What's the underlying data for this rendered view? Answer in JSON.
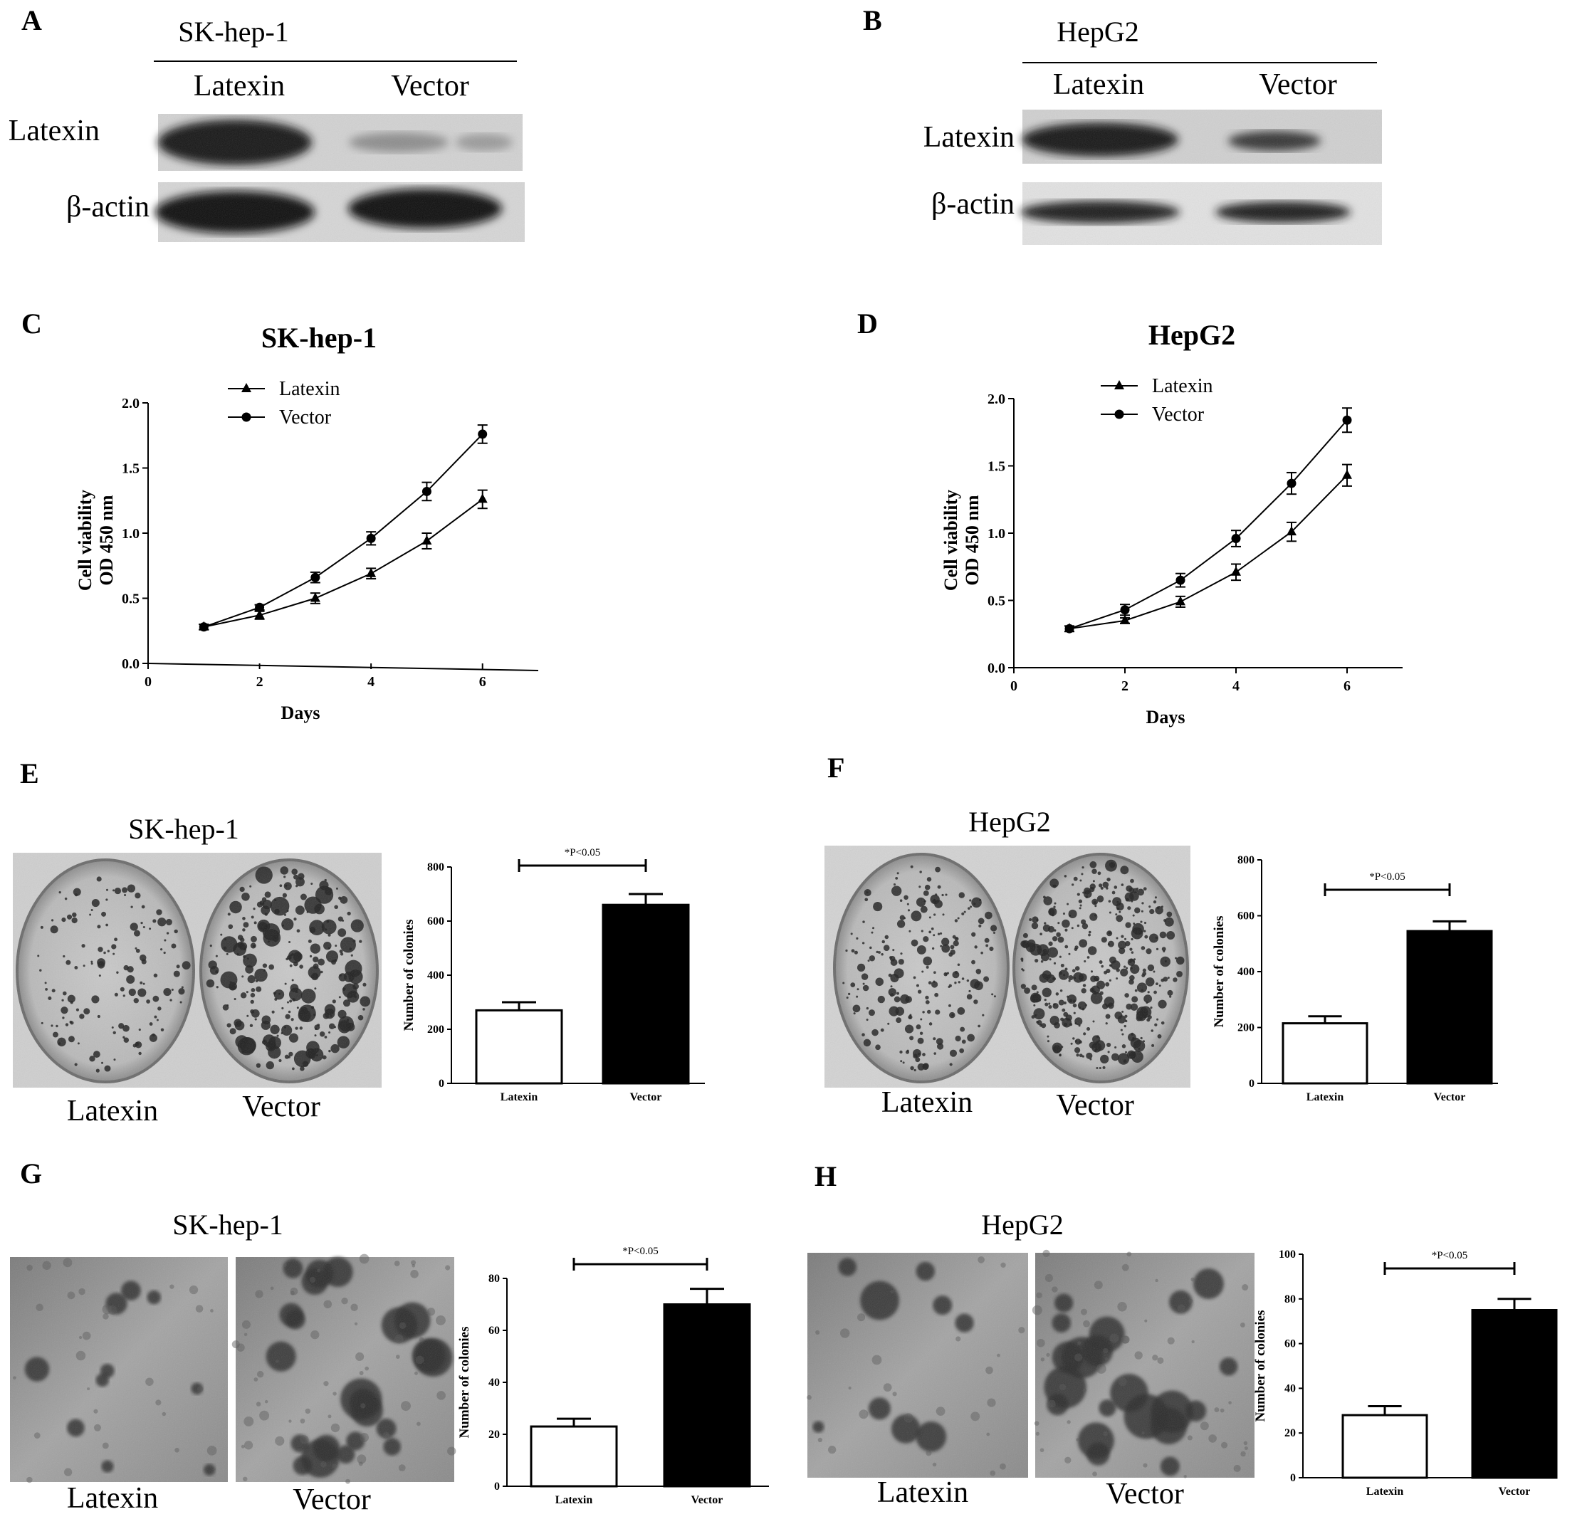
{
  "panels": {
    "A": {
      "letter": "A",
      "title": "SK-hep-1",
      "lanes": [
        "Latexin",
        "Vector"
      ],
      "rows": [
        "Latexin",
        "β-actin"
      ]
    },
    "B": {
      "letter": "B",
      "title": "HepG2",
      "lanes": [
        "Latexin",
        "Vector"
      ],
      "rows": [
        "Latexin",
        "β-actin"
      ]
    },
    "C": {
      "letter": "C"
    },
    "D": {
      "letter": "D"
    },
    "E": {
      "letter": "E",
      "title": "SK-hep-1",
      "captions": [
        "Latexin",
        "Vector"
      ]
    },
    "F": {
      "letter": "F",
      "title": "HepG2",
      "captions": [
        "Latexin",
        "Vector"
      ]
    },
    "G": {
      "letter": "G",
      "title": "SK-hep-1",
      "captions": [
        "Latexin",
        "Vector"
      ]
    },
    "H": {
      "letter": "H",
      "title": "HepG2",
      "captions": [
        "Latexin",
        "Vector"
      ]
    }
  },
  "colors": {
    "line": "#000000",
    "bar_vector": "#000000",
    "bar_latexin": "#ffffff",
    "blot_band": "#141414"
  },
  "chart_data": [
    {
      "id": "C",
      "type": "line",
      "title": "SK-hep-1",
      "xlabel": "Days",
      "ylabel": "Cell viability OD 450 nm",
      "xlim": [
        0,
        7
      ],
      "ylim": [
        0,
        2.0
      ],
      "xticks": [
        0,
        2,
        4,
        6
      ],
      "yticks": [
        0.0,
        0.5,
        1.0,
        1.5,
        2.0
      ],
      "ytick_labels": [
        "0.0",
        "0.5",
        "1.0",
        "1.5",
        "2.0"
      ],
      "legend_position": "top-left",
      "series": [
        {
          "name": "Latexin",
          "marker": "triangle",
          "x": [
            1,
            2,
            3,
            4,
            5,
            6
          ],
          "y": [
            0.28,
            0.37,
            0.5,
            0.69,
            0.94,
            1.26
          ],
          "err": [
            0.02,
            0.03,
            0.04,
            0.04,
            0.06,
            0.07
          ]
        },
        {
          "name": "Vector",
          "marker": "circle",
          "x": [
            1,
            2,
            3,
            4,
            5,
            6
          ],
          "y": [
            0.28,
            0.43,
            0.66,
            0.96,
            1.32,
            1.76
          ],
          "err": [
            0.02,
            0.02,
            0.04,
            0.05,
            0.07,
            0.07
          ]
        }
      ]
    },
    {
      "id": "D",
      "type": "line",
      "title": "HepG2",
      "xlabel": "Days",
      "ylabel": "Cell viability OD 450 nm",
      "xlim": [
        0,
        7
      ],
      "ylim": [
        0,
        2.0
      ],
      "xticks": [
        0,
        2,
        4,
        6
      ],
      "yticks": [
        0.0,
        0.5,
        1.0,
        1.5,
        2.0
      ],
      "ytick_labels": [
        "0.0",
        "0.5",
        "1.0",
        "1.5",
        "2.0"
      ],
      "legend_position": "top-left",
      "series": [
        {
          "name": "Latexin",
          "marker": "triangle",
          "x": [
            1,
            2,
            3,
            4,
            5,
            6
          ],
          "y": [
            0.29,
            0.35,
            0.49,
            0.71,
            1.01,
            1.43
          ],
          "err": [
            0.02,
            0.02,
            0.04,
            0.06,
            0.07,
            0.08
          ]
        },
        {
          "name": "Vector",
          "marker": "circle",
          "x": [
            1,
            2,
            3,
            4,
            5,
            6
          ],
          "y": [
            0.29,
            0.43,
            0.65,
            0.96,
            1.37,
            1.84
          ],
          "err": [
            0.02,
            0.04,
            0.05,
            0.06,
            0.08,
            0.09
          ]
        }
      ]
    },
    {
      "id": "E",
      "type": "bar",
      "categories": [
        "Latexin",
        "Vector"
      ],
      "values": [
        270,
        660
      ],
      "err": [
        30,
        40
      ],
      "ylabel": "Number of colonies",
      "ylim": [
        0,
        800
      ],
      "yticks": [
        0,
        200,
        400,
        600,
        800
      ],
      "annotation": "*P<0.05"
    },
    {
      "id": "F",
      "type": "bar",
      "categories": [
        "Latexin",
        "Vector"
      ],
      "values": [
        215,
        545
      ],
      "err": [
        25,
        35
      ],
      "ylabel": "Number of colonies",
      "ylim": [
        0,
        800
      ],
      "yticks": [
        0,
        200,
        400,
        600,
        800
      ],
      "annotation": "*P<0.05"
    },
    {
      "id": "G",
      "type": "bar",
      "categories": [
        "Latexin",
        "Vector"
      ],
      "values": [
        23,
        70
      ],
      "err": [
        3,
        6
      ],
      "ylabel": "Number of colonies",
      "ylim": [
        0,
        80
      ],
      "yticks": [
        0,
        20,
        40,
        60,
        80
      ],
      "annotation": "*P<0.05"
    },
    {
      "id": "H",
      "type": "bar",
      "categories": [
        "Latexin",
        "Vector"
      ],
      "values": [
        28,
        75
      ],
      "err": [
        4,
        5
      ],
      "ylabel": "Number of colonies",
      "ylim": [
        0,
        100
      ],
      "yticks": [
        0,
        20,
        40,
        60,
        80,
        100
      ],
      "annotation": "*P<0.05"
    }
  ]
}
